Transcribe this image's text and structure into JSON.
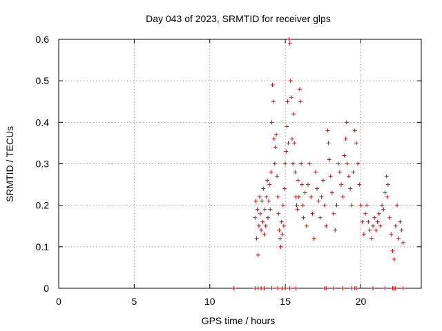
{
  "chart_data": {
    "type": "scatter",
    "title": "Day 043 of 2023, SRMTID for receiver glps",
    "xlabel": "GPS time / hours",
    "ylabel": "SRMTID / TECUs",
    "xlim": [
      0,
      24
    ],
    "ylim": [
      0,
      0.6
    ],
    "x_ticks": [
      0,
      5,
      10,
      15,
      20
    ],
    "x_tick_labels": [
      "0",
      "5",
      "10",
      "15",
      "20"
    ],
    "y_ticks": [
      0,
      0.1,
      0.2,
      0.3,
      0.4,
      0.5,
      0.6
    ],
    "y_tick_labels": [
      "0",
      "0.1",
      "0.2",
      "0.3",
      "0.4",
      "0.5",
      "0.6"
    ],
    "grid": true,
    "marker": "+",
    "series": [
      {
        "name": "SRMTID",
        "color": "#e00000",
        "points": [
          [
            11.6,
            0.0
          ],
          [
            13.0,
            0.0
          ],
          [
            13.2,
            0.0
          ],
          [
            13.4,
            0.0
          ],
          [
            13.6,
            0.0
          ],
          [
            14.1,
            0.0
          ],
          [
            14.5,
            0.0
          ],
          [
            14.8,
            0.0
          ],
          [
            15.0,
            0.0
          ],
          [
            15.3,
            0.0
          ],
          [
            15.7,
            0.0
          ],
          [
            17.6,
            0.0
          ],
          [
            17.7,
            0.0
          ],
          [
            18.2,
            0.0
          ],
          [
            18.8,
            0.0
          ],
          [
            19.4,
            0.0
          ],
          [
            19.6,
            0.0
          ],
          [
            19.7,
            0.0
          ],
          [
            20.8,
            0.0
          ],
          [
            21.6,
            0.0
          ],
          [
            22.1,
            0.0
          ],
          [
            22.2,
            0.0
          ],
          [
            22.3,
            0.0
          ],
          [
            22.8,
            0.0
          ],
          [
            13.0,
            0.17
          ],
          [
            13.05,
            0.21
          ],
          [
            13.1,
            0.12
          ],
          [
            13.15,
            0.19
          ],
          [
            13.2,
            0.08
          ],
          [
            13.25,
            0.15
          ],
          [
            13.3,
            0.22
          ],
          [
            13.35,
            0.18
          ],
          [
            13.4,
            0.14
          ],
          [
            13.45,
            0.21
          ],
          [
            13.5,
            0.16
          ],
          [
            13.55,
            0.24
          ],
          [
            13.6,
            0.13
          ],
          [
            13.65,
            0.19
          ],
          [
            13.7,
            0.15
          ],
          [
            13.75,
            0.22
          ],
          [
            13.8,
            0.26
          ],
          [
            13.85,
            0.17
          ],
          [
            13.9,
            0.21
          ],
          [
            13.95,
            0.25
          ],
          [
            14.0,
            0.19
          ],
          [
            14.05,
            0.28
          ],
          [
            14.1,
            0.4
          ],
          [
            14.15,
            0.49
          ],
          [
            14.2,
            0.45
          ],
          [
            14.25,
            0.36
          ],
          [
            14.3,
            0.3
          ],
          [
            14.35,
            0.34
          ],
          [
            14.4,
            0.37
          ],
          [
            14.45,
            0.27
          ],
          [
            14.5,
            0.22
          ],
          [
            14.55,
            0.18
          ],
          [
            14.6,
            0.14
          ],
          [
            14.65,
            0.12
          ],
          [
            14.7,
            0.1
          ],
          [
            14.75,
            0.16
          ],
          [
            14.8,
            0.13
          ],
          [
            14.85,
            0.2
          ],
          [
            14.9,
            0.15
          ],
          [
            14.95,
            0.24
          ],
          [
            15.0,
            0.3
          ],
          [
            15.05,
            0.33
          ],
          [
            15.1,
            0.39
          ],
          [
            15.15,
            0.45
          ],
          [
            15.2,
            0.35
          ],
          [
            15.25,
            0.6
          ],
          [
            15.3,
            0.59
          ],
          [
            15.35,
            0.5
          ],
          [
            15.4,
            0.46
          ],
          [
            15.45,
            0.36
          ],
          [
            15.5,
            0.3
          ],
          [
            15.55,
            0.42
          ],
          [
            15.6,
            0.35
          ],
          [
            15.65,
            0.28
          ],
          [
            15.7,
            0.22
          ],
          [
            15.75,
            0.2
          ],
          [
            15.8,
            0.19
          ],
          [
            15.85,
            0.26
          ],
          [
            15.9,
            0.22
          ],
          [
            15.95,
            0.48
          ],
          [
            16.0,
            0.45
          ],
          [
            16.05,
            0.3
          ],
          [
            16.1,
            0.25
          ],
          [
            16.15,
            0.2
          ],
          [
            16.2,
            0.17
          ],
          [
            16.3,
            0.23
          ],
          [
            16.4,
            0.15
          ],
          [
            16.5,
            0.25
          ],
          [
            16.6,
            0.3
          ],
          [
            16.7,
            0.22
          ],
          [
            16.8,
            0.18
          ],
          [
            16.9,
            0.12
          ],
          [
            17.0,
            0.28
          ],
          [
            17.1,
            0.24
          ],
          [
            17.2,
            0.21
          ],
          [
            17.3,
            0.17
          ],
          [
            17.4,
            0.22
          ],
          [
            17.5,
            0.26
          ],
          [
            17.6,
            0.2
          ],
          [
            17.7,
            0.15
          ],
          [
            17.8,
            0.38
          ],
          [
            17.85,
            0.35
          ],
          [
            17.9,
            0.31
          ],
          [
            18.0,
            0.27
          ],
          [
            18.1,
            0.23
          ],
          [
            18.2,
            0.18
          ],
          [
            18.3,
            0.14
          ],
          [
            18.4,
            0.2
          ],
          [
            18.5,
            0.3
          ],
          [
            18.6,
            0.28
          ],
          [
            18.7,
            0.25
          ],
          [
            18.8,
            0.22
          ],
          [
            18.9,
            0.32
          ],
          [
            19.0,
            0.36
          ],
          [
            19.05,
            0.4
          ],
          [
            19.1,
            0.3
          ],
          [
            19.2,
            0.27
          ],
          [
            19.3,
            0.24
          ],
          [
            19.4,
            0.2
          ],
          [
            19.5,
            0.28
          ],
          [
            19.6,
            0.38
          ],
          [
            19.7,
            0.35
          ],
          [
            19.8,
            0.3
          ],
          [
            19.9,
            0.25
          ],
          [
            20.0,
            0.2
          ],
          [
            20.1,
            0.16
          ],
          [
            20.2,
            0.13
          ],
          [
            20.3,
            0.18
          ],
          [
            20.4,
            0.2
          ],
          [
            20.5,
            0.16
          ],
          [
            20.6,
            0.14
          ],
          [
            20.7,
            0.12
          ],
          [
            20.8,
            0.15
          ],
          [
            20.9,
            0.17
          ],
          [
            21.0,
            0.14
          ],
          [
            21.1,
            0.16
          ],
          [
            21.2,
            0.18
          ],
          [
            21.3,
            0.15
          ],
          [
            21.4,
            0.2
          ],
          [
            21.5,
            0.19
          ],
          [
            21.6,
            0.23
          ],
          [
            21.7,
            0.27
          ],
          [
            21.75,
            0.22
          ],
          [
            21.8,
            0.25
          ],
          [
            21.9,
            0.17
          ],
          [
            22.0,
            0.13
          ],
          [
            22.1,
            0.09
          ],
          [
            22.2,
            0.07
          ],
          [
            22.3,
            0.15
          ],
          [
            22.4,
            0.2
          ],
          [
            22.5,
            0.12
          ],
          [
            22.6,
            0.16
          ],
          [
            22.7,
            0.14
          ],
          [
            22.8,
            0.11
          ]
        ]
      }
    ]
  }
}
